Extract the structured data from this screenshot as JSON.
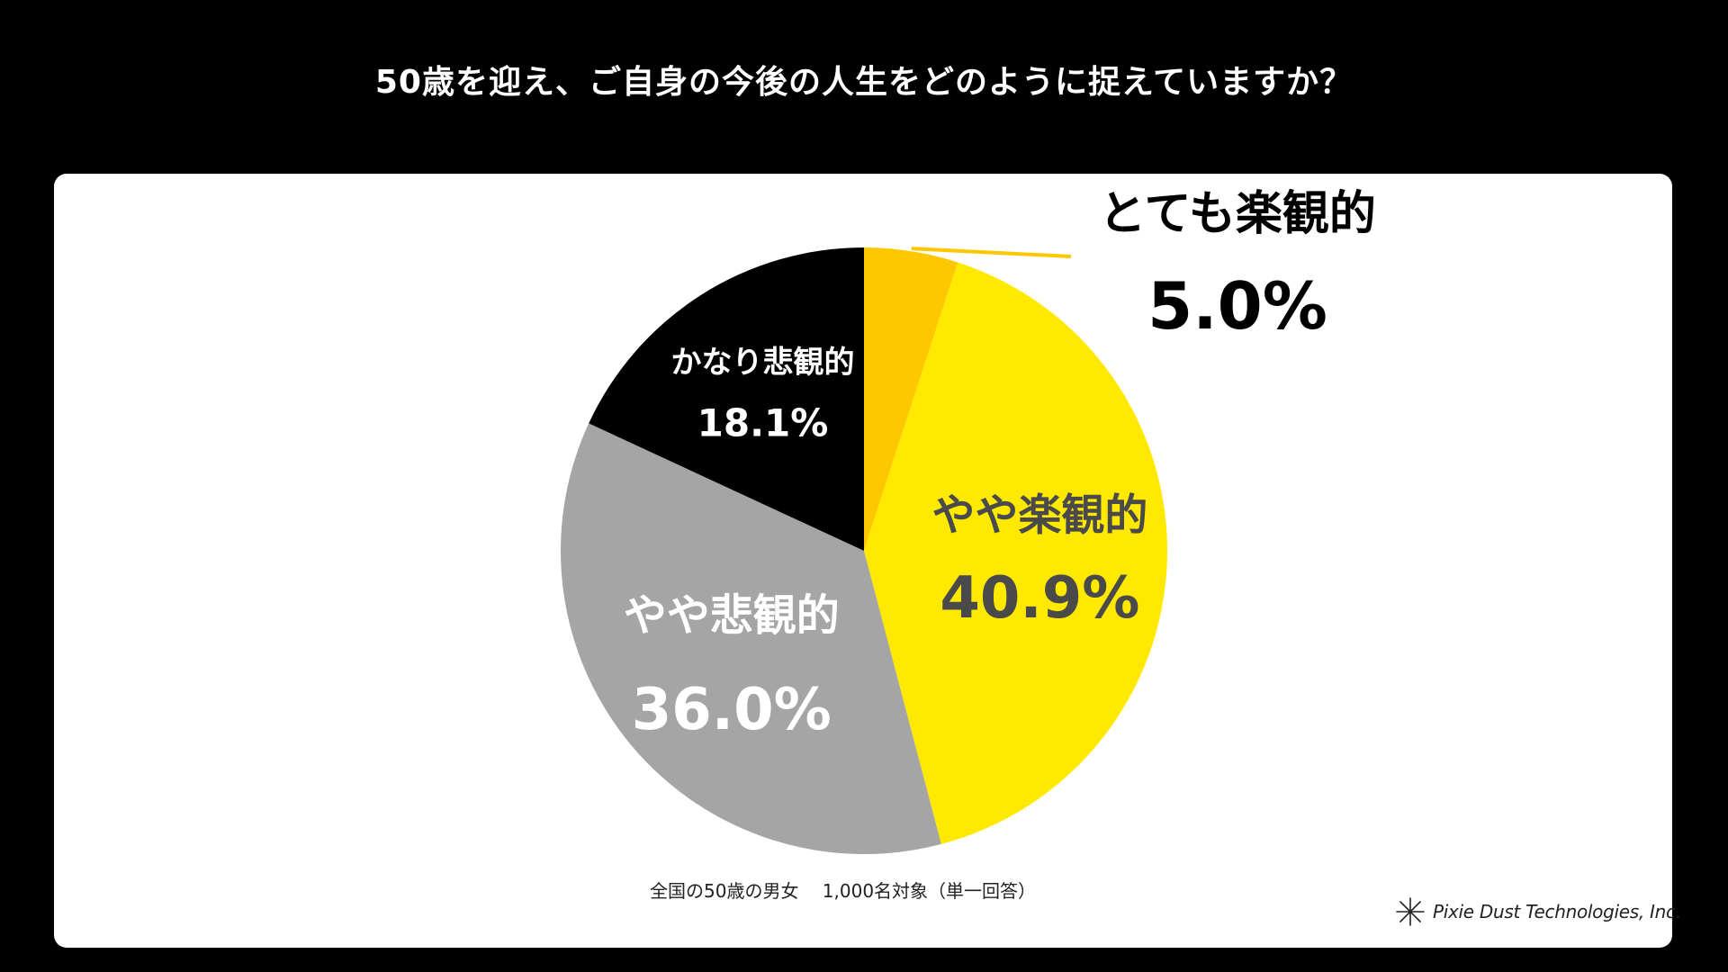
{
  "title": "50歳を迎え、ご自身の今後の人生をどのように捉えていますか？",
  "footnote": "全国の50歳の男女　 1,000名対象（単一回答）",
  "logo": {
    "icon": "asterisk-logo-icon",
    "text": "Pixie Dust Technologies, Inc."
  },
  "colors": {
    "background": "#000000",
    "panel": "#ffffff"
  },
  "chart_data": {
    "type": "pie",
    "start": "12 o'clock, clockwise",
    "slices": [
      {
        "label": "とても楽観的",
        "value": 5.0,
        "value_label": "5.0%",
        "color": "#FFC700",
        "text_color": "#000000",
        "callout": true
      },
      {
        "label": "やや楽観的",
        "value": 40.9,
        "value_label": "40.9%",
        "color": "#FFE900",
        "text_color": "#4a4a4a",
        "callout": false
      },
      {
        "label": "やや悲観的",
        "value": 36.0,
        "value_label": "36.0%",
        "color": "#A5A5A5",
        "text_color": "#ffffff",
        "callout": false
      },
      {
        "label": "かなり悲観的",
        "value": 18.1,
        "value_label": "18.1%",
        "color": "#000000",
        "text_color": "#ffffff",
        "callout": false
      }
    ]
  }
}
